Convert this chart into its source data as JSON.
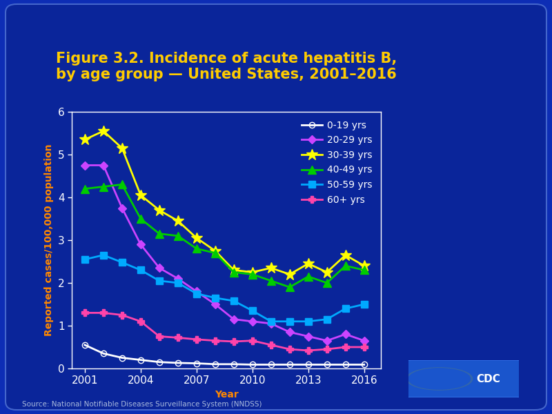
{
  "title_line1": "Figure 3.2. Incidence of acute hepatitis B,",
  "title_line2": "by age group — United States, 2001–2016",
  "xlabel": "Year",
  "ylabel": "Reported cases/100,000 population",
  "years": [
    2001,
    2002,
    2003,
    2004,
    2005,
    2006,
    2007,
    2008,
    2009,
    2010,
    2011,
    2012,
    2013,
    2014,
    2015,
    2016
  ],
  "series": [
    {
      "name": "0-19 yrs",
      "values": [
        0.55,
        0.35,
        0.25,
        0.2,
        0.15,
        0.13,
        0.12,
        0.1,
        0.1,
        0.09,
        0.09,
        0.09,
        0.09,
        0.09,
        0.09,
        0.09
      ],
      "color": "#ffffff",
      "marker": "o",
      "markersize": 6,
      "markerfacecolor": "none",
      "markeredgecolor": "#ffffff",
      "linewidth": 2.0
    },
    {
      "name": "20-29 yrs",
      "values": [
        4.75,
        4.75,
        3.75,
        2.9,
        2.35,
        2.1,
        1.8,
        1.5,
        1.15,
        1.1,
        1.05,
        0.85,
        0.75,
        0.65,
        0.8,
        0.65
      ],
      "color": "#cc44ff",
      "marker": "D",
      "markersize": 6,
      "markerfacecolor": "#cc44ff",
      "markeredgecolor": "#cc44ff",
      "linewidth": 2.0
    },
    {
      "name": "30-39 yrs",
      "values": [
        5.35,
        5.55,
        5.15,
        4.05,
        3.7,
        3.45,
        3.05,
        2.75,
        2.3,
        2.25,
        2.35,
        2.2,
        2.45,
        2.25,
        2.65,
        2.4
      ],
      "color": "#ffff00",
      "marker": "*",
      "markersize": 12,
      "markerfacecolor": "#ffff00",
      "markeredgecolor": "#ffff00",
      "linewidth": 2.0
    },
    {
      "name": "40-49 yrs",
      "values": [
        4.2,
        4.25,
        4.3,
        3.5,
        3.15,
        3.1,
        2.8,
        2.7,
        2.25,
        2.2,
        2.05,
        1.9,
        2.15,
        2.0,
        2.4,
        2.3
      ],
      "color": "#00cc00",
      "marker": "^",
      "markersize": 8,
      "markerfacecolor": "#00cc00",
      "markeredgecolor": "#00cc00",
      "linewidth": 2.0
    },
    {
      "name": "50-59 yrs",
      "values": [
        2.55,
        2.65,
        2.48,
        2.3,
        2.05,
        2.0,
        1.75,
        1.65,
        1.58,
        1.35,
        1.1,
        1.1,
        1.1,
        1.15,
        1.4,
        1.5
      ],
      "color": "#00aaff",
      "marker": "s",
      "markersize": 7,
      "markerfacecolor": "#00aaff",
      "markeredgecolor": "#00aaff",
      "linewidth": 2.0
    },
    {
      "name": "60+ yrs",
      "values": [
        1.3,
        1.3,
        1.25,
        1.1,
        0.75,
        0.72,
        0.68,
        0.65,
        0.63,
        0.65,
        0.55,
        0.45,
        0.42,
        0.45,
        0.5,
        0.5
      ],
      "color": "#ff44aa",
      "marker": "P",
      "markersize": 7,
      "markerfacecolor": "#ff44aa",
      "markeredgecolor": "#ff44aa",
      "linewidth": 2.0
    }
  ],
  "ylim": [
    0,
    6
  ],
  "yticks": [
    0,
    1,
    2,
    3,
    4,
    5,
    6
  ],
  "xticks": [
    2001,
    2004,
    2007,
    2010,
    2013,
    2016
  ],
  "outer_bg_color": "#0d2db5",
  "card_bg_color": "#0a259a",
  "plot_bg_color": "#0a259a",
  "title_color": "#ffcc00",
  "axis_label_color": "#ff8800",
  "tick_color": "#ffffff",
  "legend_text_color": "#ffffff",
  "source_text": "Source: National Notifiable Diseases Surveillance System (NNDSS)",
  "title_fontsize": 15,
  "axis_label_fontsize": 10,
  "tick_fontsize": 11,
  "legend_fontsize": 10
}
